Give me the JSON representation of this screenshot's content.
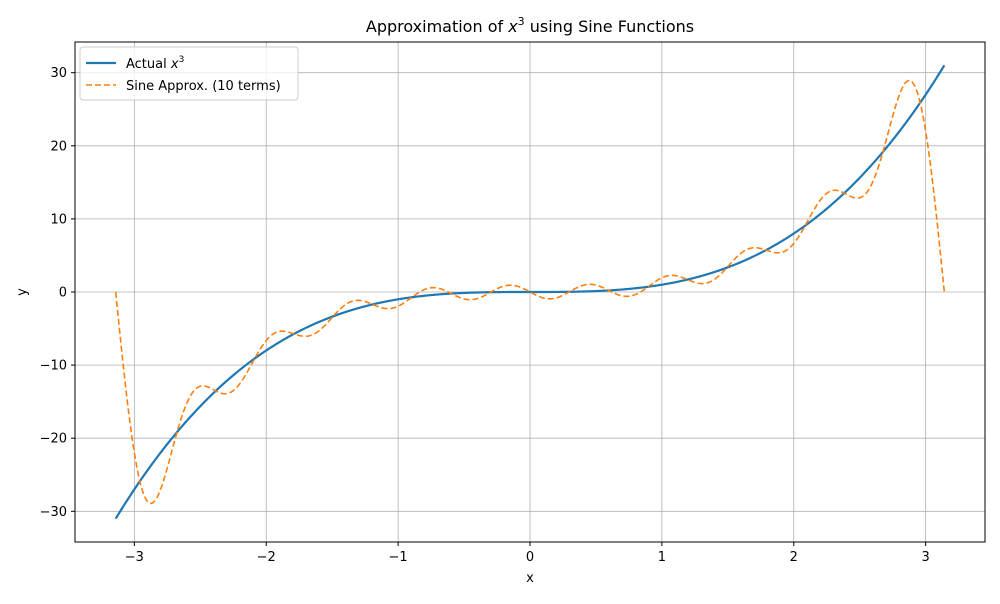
{
  "chart_data": {
    "type": "line",
    "title_prefix": "Approximation of ",
    "title_var": "x",
    "title_exp": "3",
    "title_suffix": " using Sine Functions",
    "xlabel": "x",
    "ylabel": "y",
    "xlim": [
      -3.45,
      3.45
    ],
    "ylim": [
      -34.2,
      34.2
    ],
    "xticks": [
      -3,
      -2,
      -1,
      0,
      1,
      2,
      3
    ],
    "xtick_labels": [
      "−3",
      "−2",
      "−1",
      "0",
      "1",
      "2",
      "3"
    ],
    "yticks": [
      -30,
      -20,
      -10,
      0,
      10,
      20,
      30
    ],
    "ytick_labels": [
      "−30",
      "−20",
      "−10",
      "0",
      "10",
      "20",
      "30"
    ],
    "grid": true,
    "legend_position": "top-left",
    "series": [
      {
        "name_prefix": "Actual ",
        "name_var": "x",
        "name_exp": "3",
        "color": "#1f77b4",
        "style": "solid",
        "function": "x^3",
        "x_range": [
          -3.14159,
          3.14159
        ]
      },
      {
        "name": "Sine Approx. (10 terms)",
        "color": "#ff7f0e",
        "style": "dashed",
        "function": "sum_{n=1}^{10} 2(-1)^{n+1}(pi^2/n - 6/n^3) sin(n x)",
        "terms": 10,
        "x_range": [
          -3.14159,
          3.14159
        ]
      }
    ]
  }
}
